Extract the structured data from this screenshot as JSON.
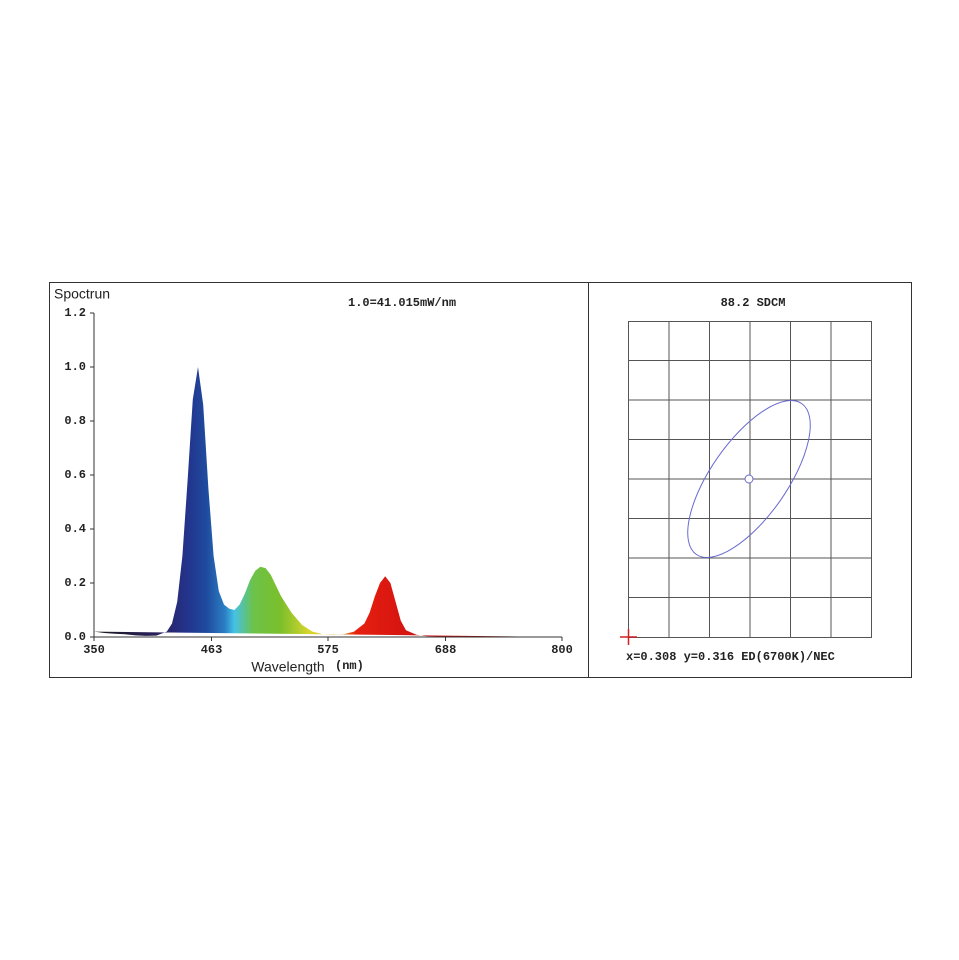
{
  "chart_data": {
    "type": "area",
    "title": "Spoctrun",
    "annotation": "1.0=41.015mW/nm",
    "x_label": "Wavelength",
    "x_unit": "(nm)",
    "x": [
      350,
      360,
      370,
      380,
      390,
      400,
      410,
      420,
      425,
      430,
      435,
      440,
      445,
      450,
      455,
      460,
      465,
      470,
      475,
      480,
      485,
      490,
      495,
      500,
      505,
      510,
      515,
      520,
      525,
      530,
      540,
      550,
      560,
      570,
      580,
      590,
      600,
      610,
      615,
      620,
      625,
      630,
      635,
      640,
      645,
      650,
      660,
      670,
      680,
      700,
      750,
      800
    ],
    "values": [
      0.02,
      0.015,
      0.012,
      0.01,
      0.006,
      0.004,
      0.005,
      0.02,
      0.05,
      0.13,
      0.3,
      0.58,
      0.88,
      1.0,
      0.86,
      0.55,
      0.3,
      0.17,
      0.12,
      0.105,
      0.1,
      0.12,
      0.16,
      0.21,
      0.245,
      0.26,
      0.255,
      0.23,
      0.19,
      0.15,
      0.09,
      0.045,
      0.02,
      0.01,
      0.008,
      0.01,
      0.02,
      0.05,
      0.09,
      0.15,
      0.2,
      0.225,
      0.2,
      0.13,
      0.06,
      0.025,
      0.008,
      0.003,
      0.002,
      0.001,
      0,
      0
    ],
    "xlim": [
      350,
      800
    ],
    "xticks": [
      350,
      463,
      575,
      688,
      800
    ],
    "ylim": [
      0,
      1.2
    ],
    "yticks": [
      {
        "value": 0,
        "label": "0.0"
      },
      0.2,
      0.4,
      0.6,
      0.8,
      {
        "value": 1,
        "label": "1.0"
      },
      1.2
    ]
  },
  "sdcm_panel": {
    "title": "88.2 SDCM",
    "caption": "x=0.308 y=0.316 ED(6700K)/NEC"
  }
}
